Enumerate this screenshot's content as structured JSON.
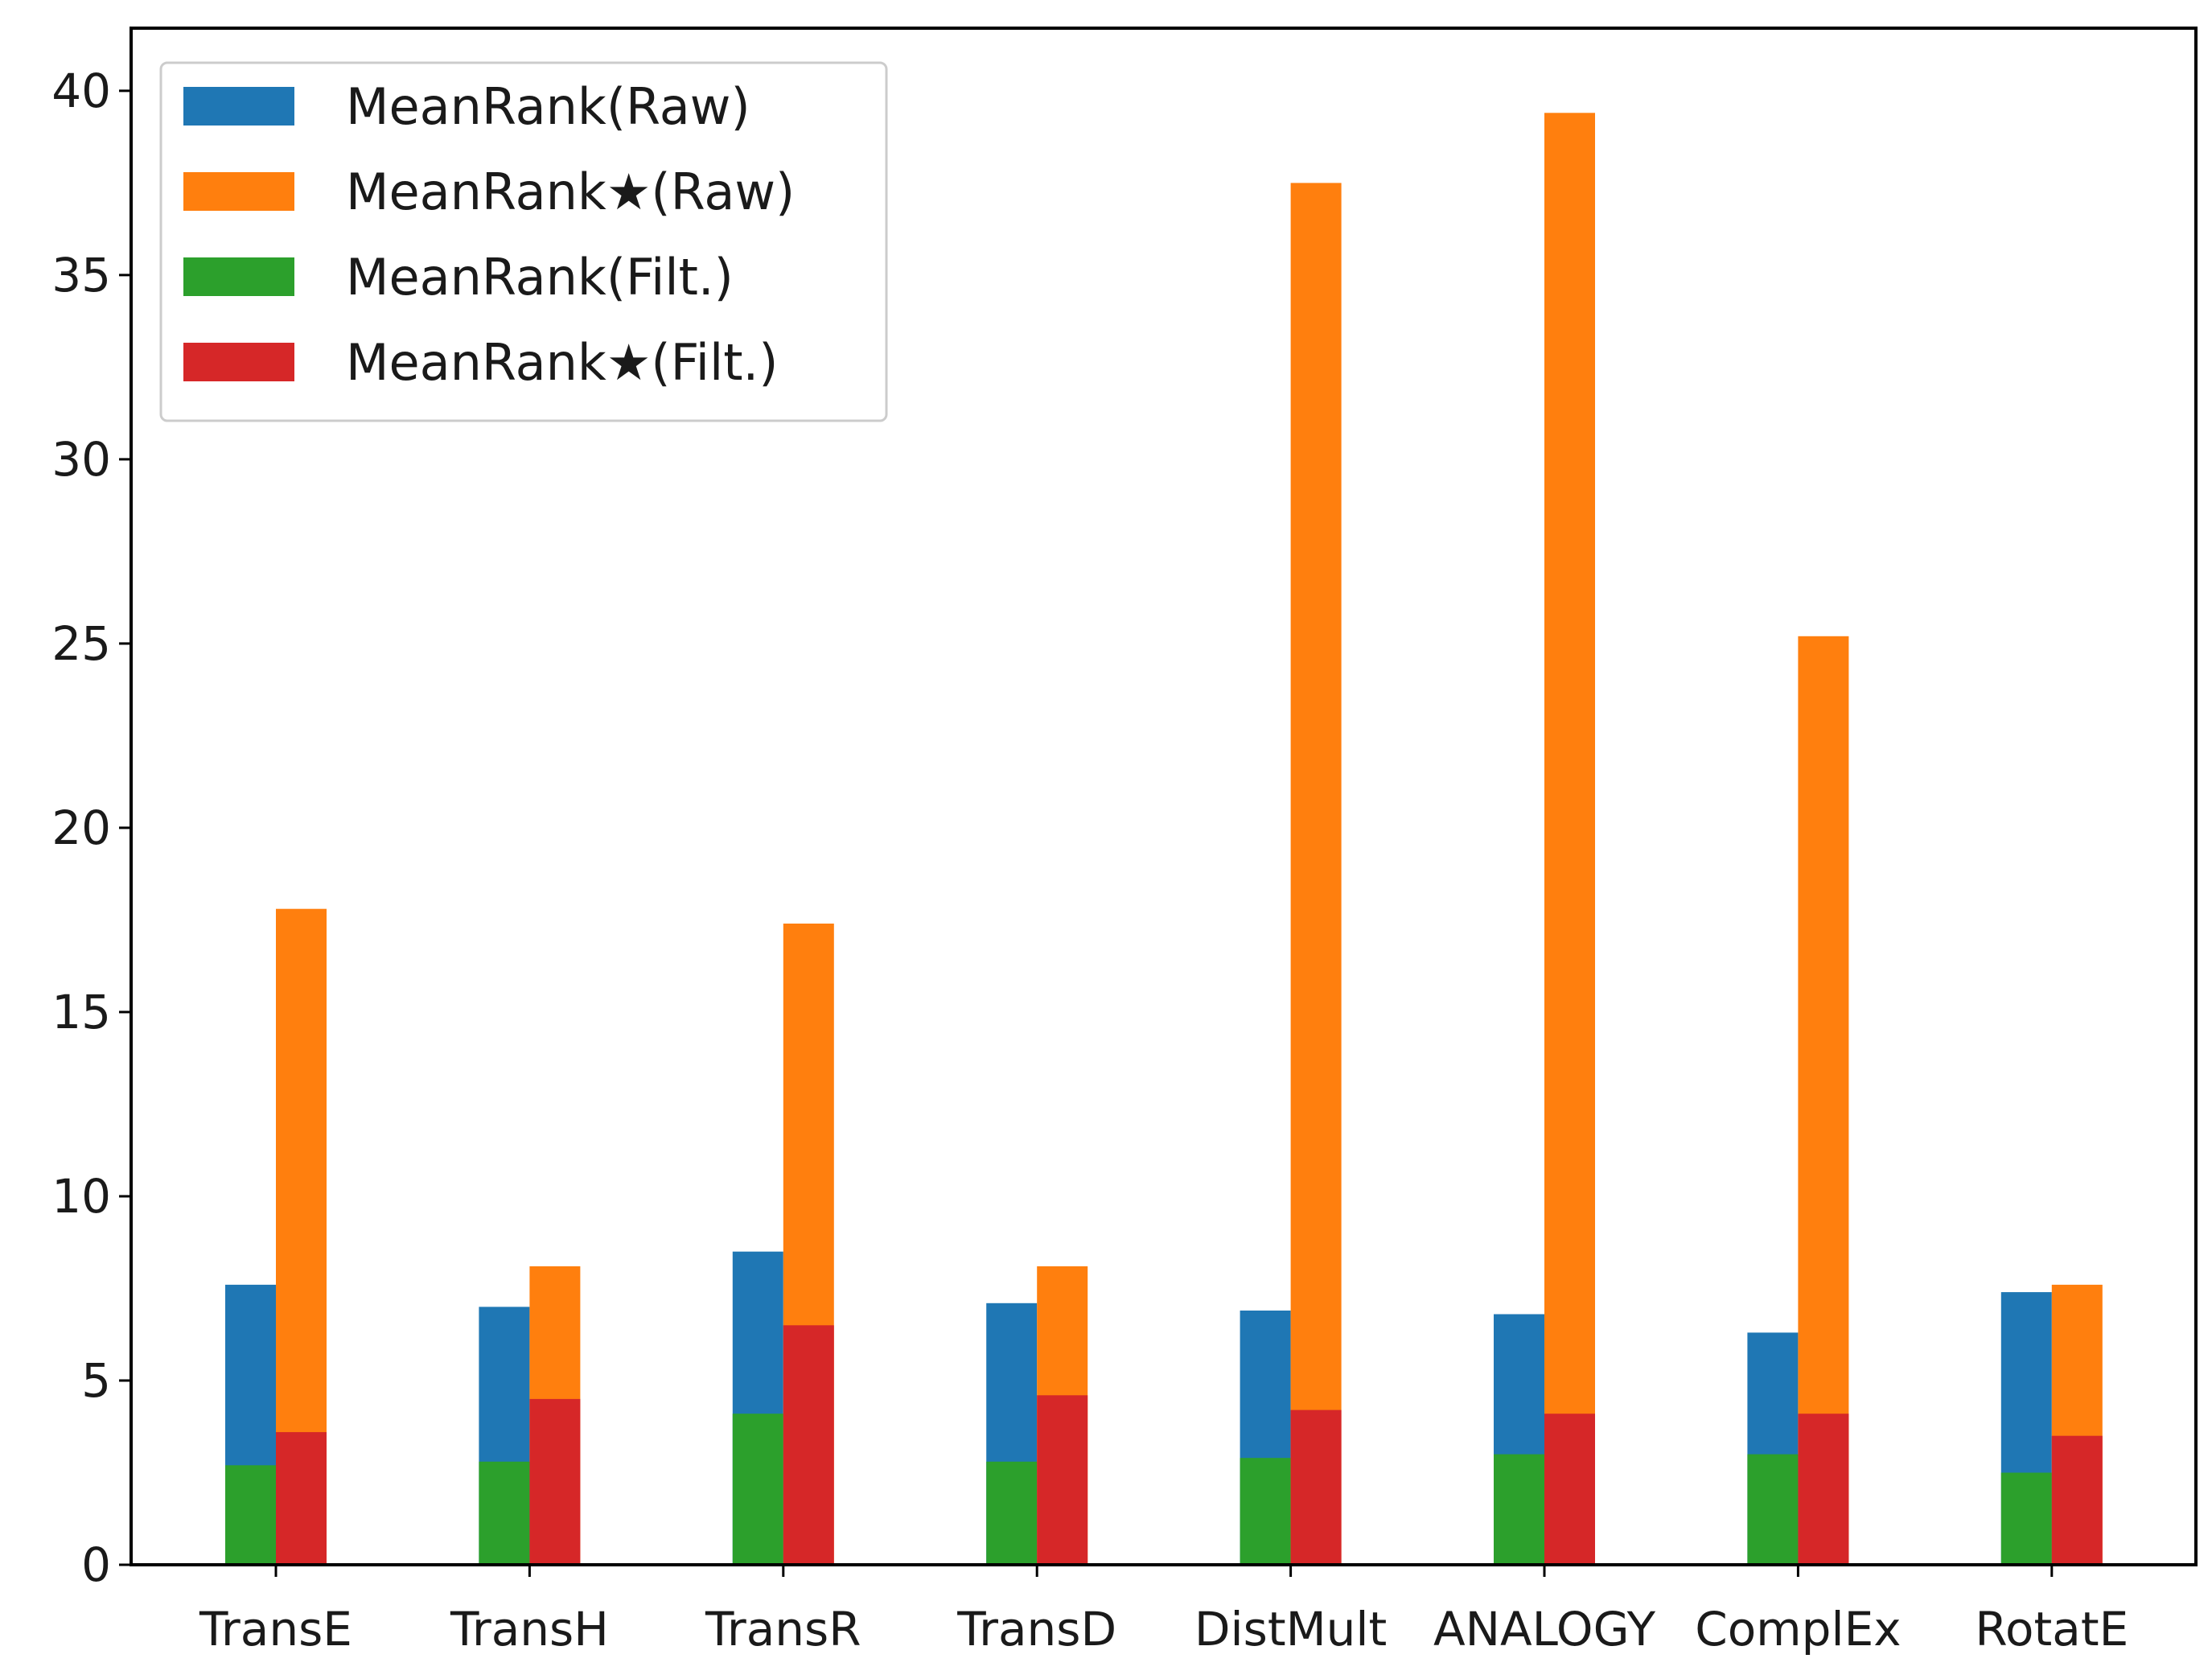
{
  "chart_data": {
    "type": "bar",
    "title": "",
    "xlabel": "",
    "ylabel": "",
    "ylim": [
      0,
      41.7
    ],
    "yticks": [
      0,
      5,
      10,
      15,
      20,
      25,
      30,
      35,
      40
    ],
    "grid": false,
    "legend_position": "top-left",
    "categories": [
      "TransE",
      "TransH",
      "TransR",
      "TransD",
      "DistMult",
      "ANALOGY",
      "ComplEx",
      "RotatE"
    ],
    "series": [
      {
        "name": "MeanRank(Raw)",
        "color": "#1f77b4",
        "position": "left",
        "values": [
          7.6,
          7.0,
          8.5,
          7.1,
          6.9,
          6.8,
          6.3,
          7.4
        ]
      },
      {
        "name": "MeanRank★(Raw)",
        "color": "#ff7f0e",
        "position": "right",
        "values": [
          17.8,
          8.1,
          17.4,
          8.1,
          37.5,
          39.4,
          25.2,
          7.6
        ]
      },
      {
        "name": "MeanRank(Filt.)",
        "color": "#2ca02c",
        "position": "left",
        "values": [
          2.7,
          2.8,
          4.1,
          2.8,
          2.9,
          3.0,
          3.0,
          2.5
        ]
      },
      {
        "name": "MeanRank★(Filt.)",
        "color": "#d62728",
        "position": "right",
        "values": [
          3.6,
          4.5,
          6.5,
          4.6,
          4.2,
          4.1,
          4.1,
          3.5
        ]
      }
    ]
  }
}
